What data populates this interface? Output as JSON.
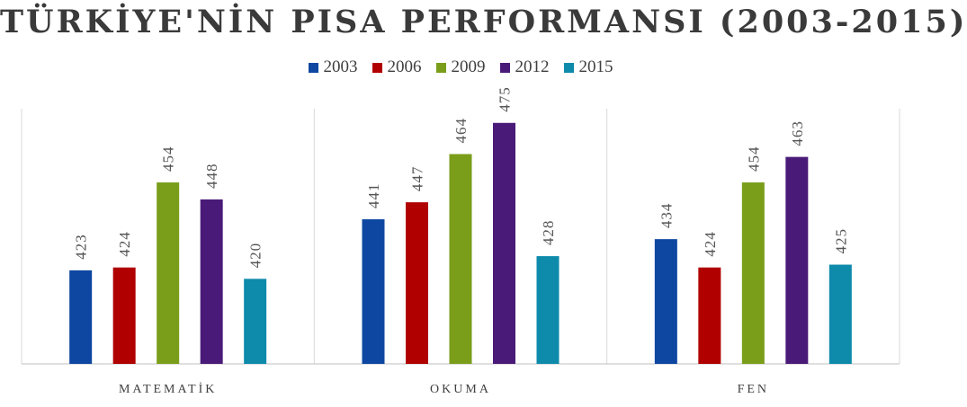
{
  "chart_data": {
    "type": "bar",
    "title": "TÜRKİYE'NİN PISA PERFORMANSI (2003-2015)",
    "categories": [
      "MATEMATİK",
      "OKUMA",
      "FEN"
    ],
    "series": [
      {
        "name": "2003",
        "color": "#0d47a1",
        "values": [
          423,
          441,
          434
        ]
      },
      {
        "name": "2006",
        "color": "#b00000",
        "values": [
          424,
          447,
          424
        ]
      },
      {
        "name": "2009",
        "color": "#7a9e1a",
        "values": [
          454,
          464,
          454
        ]
      },
      {
        "name": "2012",
        "color": "#4a1a78",
        "values": [
          448,
          475,
          463
        ]
      },
      {
        "name": "2015",
        "color": "#0e8aab",
        "values": [
          420,
          428,
          425
        ]
      }
    ],
    "ylim": [
      390,
      480
    ],
    "grid": false,
    "legend_position": "top"
  }
}
